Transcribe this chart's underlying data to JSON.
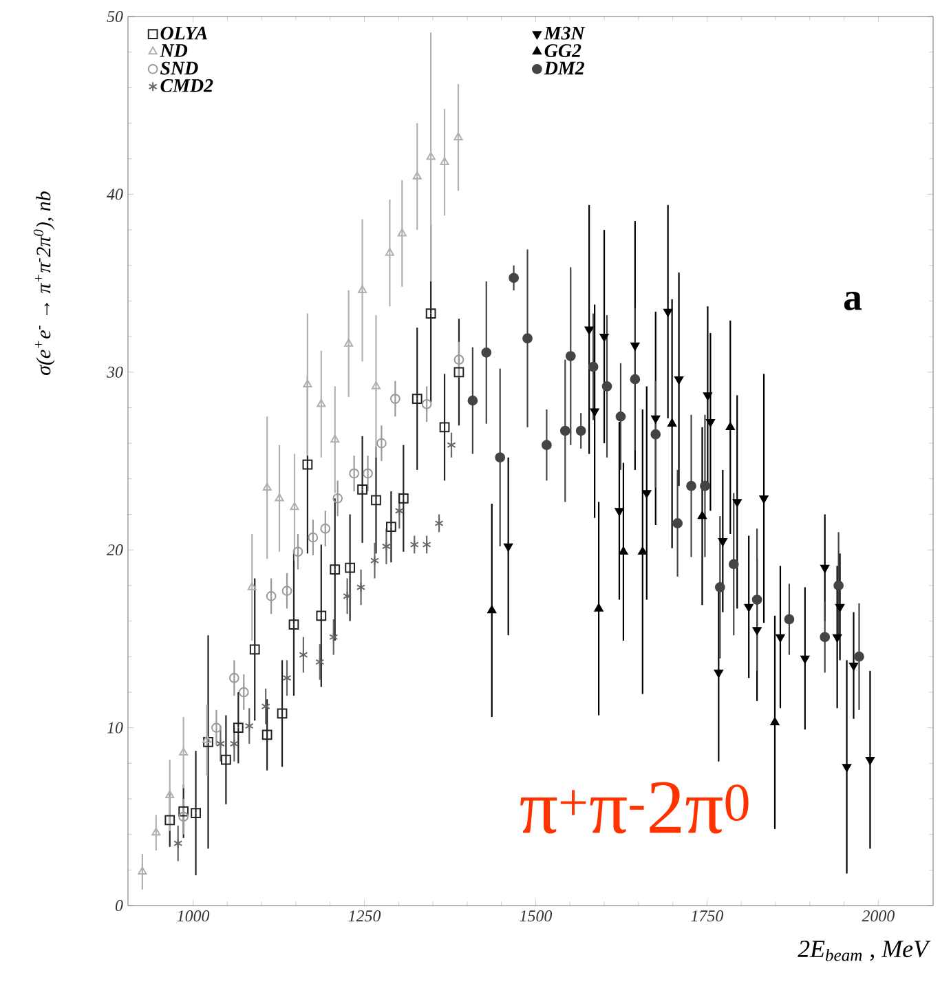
{
  "chart_data": {
    "type": "scatter",
    "xlabel": "2E$_{beam}$ , MeV",
    "ylabel": "σ(e$^{+}$e$^{-}$ → π$^{+}$π$^{-}$2π$^{0}$), nb",
    "xlim": [
      905,
      2080
    ],
    "ylim": [
      0,
      50
    ],
    "xticks": [
      1000,
      1250,
      1500,
      1750,
      2000
    ],
    "yticks": [
      0,
      10,
      20,
      30,
      40,
      50
    ],
    "legend": "top",
    "annotations": [
      "a",
      "π$^{+}$π$^{-}$2π$^{0}$"
    ],
    "series": [
      {
        "name": "OLYA",
        "color": "#222222",
        "marker": "square",
        "x": [
          966,
          986,
          1004,
          1022,
          1048,
          1066,
          1090,
          1108,
          1130,
          1147,
          1167,
          1187,
          1207,
          1229,
          1247,
          1267,
          1289,
          1307,
          1327,
          1347,
          1367,
          1388
        ],
        "values": [
          4.8,
          5.3,
          5.2,
          9.2,
          8.2,
          10.0,
          14.4,
          9.6,
          10.8,
          15.8,
          24.8,
          16.3,
          18.9,
          19.0,
          23.4,
          22.8,
          21.3,
          22.9,
          28.5,
          33.3,
          26.9,
          30.0
        ],
        "errors": [
          1.5,
          1.5,
          3.5,
          6,
          2.5,
          2,
          4,
          2,
          3,
          4,
          5,
          4,
          4,
          3,
          3,
          3,
          2,
          3,
          4,
          5,
          3,
          3
        ]
      },
      {
        "name": "ND",
        "color": "#b0b0b0",
        "marker": "triangle",
        "x": [
          926,
          946,
          966,
          986,
          1020,
          1086,
          1108,
          1126,
          1148,
          1167,
          1187,
          1207,
          1227,
          1247,
          1267,
          1287,
          1305,
          1327,
          1347,
          1367,
          1387
        ],
        "values": [
          1.9,
          4.1,
          6.2,
          8.6,
          9.3,
          17.9,
          23.5,
          22.9,
          22.4,
          29.3,
          28.2,
          26.2,
          31.6,
          34.6,
          29.2,
          36.7,
          37.8,
          41.0,
          42.1,
          41.8,
          43.2
        ],
        "errors": [
          1,
          1,
          2,
          2,
          2,
          3,
          4,
          3,
          3,
          4,
          3,
          3,
          3,
          4,
          4,
          3,
          3,
          3,
          7,
          3,
          3
        ]
      },
      {
        "name": "SND",
        "color": "#999999",
        "marker": "circle",
        "x": [
          986,
          1034,
          1060,
          1074,
          1114,
          1137,
          1153,
          1175,
          1193,
          1211,
          1235,
          1255,
          1275,
          1295,
          1341,
          1388
        ],
        "values": [
          5.0,
          10.0,
          12.8,
          12.0,
          17.4,
          17.7,
          19.9,
          20.7,
          21.2,
          22.9,
          24.3,
          24.3,
          26.0,
          28.5,
          28.2,
          30.7
        ],
        "errors": [
          1,
          1,
          1,
          1,
          1,
          1,
          1,
          1,
          1,
          1,
          1,
          1,
          1,
          1,
          1,
          1
        ]
      },
      {
        "name": "CMD2",
        "color": "#666666",
        "marker": "cross",
        "x": [
          978,
          1040,
          1060,
          1082,
          1106,
          1137,
          1161,
          1185,
          1205,
          1225,
          1245,
          1265,
          1282,
          1301,
          1323,
          1341,
          1359,
          1377
        ],
        "values": [
          3.5,
          9.1,
          9.1,
          10.1,
          11.2,
          12.8,
          14.1,
          13.7,
          15.1,
          17.4,
          17.9,
          19.4,
          20.2,
          22.2,
          20.3,
          20.3,
          21.5,
          25.9
        ],
        "errors": [
          1,
          1,
          1,
          1,
          1,
          1,
          1,
          1,
          1,
          1,
          1,
          1,
          1,
          1,
          0.5,
          0.5,
          0.5,
          0.7
        ]
      },
      {
        "name": "M3N",
        "color": "#000000",
        "marker": "triangle-down",
        "x": [
          1460,
          1578,
          1586,
          1600,
          1622,
          1645,
          1662,
          1675,
          1693,
          1709,
          1751,
          1755,
          1767,
          1773,
          1794,
          1811,
          1823,
          1833,
          1857,
          1893,
          1922,
          1940,
          1944,
          1954,
          1964,
          1988
        ],
        "values": [
          20.2,
          32.4,
          27.8,
          32.0,
          22.2,
          31.5,
          23.2,
          27.4,
          33.4,
          29.6,
          28.7,
          27.2,
          13.1,
          20.5,
          22.7,
          16.8,
          15.5,
          22.9,
          15.1,
          13.9,
          19.0,
          15.1,
          16.8,
          7.8,
          13.5,
          8.2
        ],
        "errors": [
          5,
          7,
          6,
          6,
          5,
          7,
          6,
          6,
          6,
          6,
          5,
          5,
          5,
          4,
          6,
          4,
          4,
          7,
          4,
          4,
          3,
          4,
          3,
          6,
          3,
          5
        ]
      },
      {
        "name": "GG2",
        "color": "#000000",
        "marker": "triangle-filled",
        "x": [
          1436,
          1592,
          1628,
          1656,
          1699,
          1743,
          1784,
          1849
        ],
        "values": [
          16.6,
          16.7,
          19.9,
          19.9,
          27.1,
          21.9,
          26.9,
          10.3
        ],
        "errors": [
          6,
          6,
          5,
          8,
          7,
          5,
          6,
          6
        ]
      },
      {
        "name": "DM2",
        "color": "#444444",
        "marker": "circle-filled",
        "x": [
          1408,
          1428,
          1448,
          1468,
          1488,
          1516,
          1543,
          1551,
          1566,
          1584,
          1604,
          1624,
          1645,
          1675,
          1707,
          1727,
          1747,
          1769,
          1789,
          1823,
          1870,
          1922,
          1942,
          1972
        ],
        "values": [
          28.4,
          31.1,
          25.2,
          35.3,
          31.9,
          25.9,
          26.7,
          30.9,
          26.7,
          30.3,
          29.2,
          27.5,
          29.6,
          26.5,
          21.5,
          23.6,
          23.6,
          17.9,
          19.2,
          17.2,
          16.1,
          15.1,
          18.0,
          14.0
        ],
        "errors": [
          3,
          4,
          5,
          0.7,
          5,
          2,
          4,
          5,
          1,
          3,
          4,
          3,
          4,
          3,
          3,
          4,
          4,
          4,
          4,
          4,
          2,
          2,
          3,
          3
        ]
      }
    ]
  }
}
